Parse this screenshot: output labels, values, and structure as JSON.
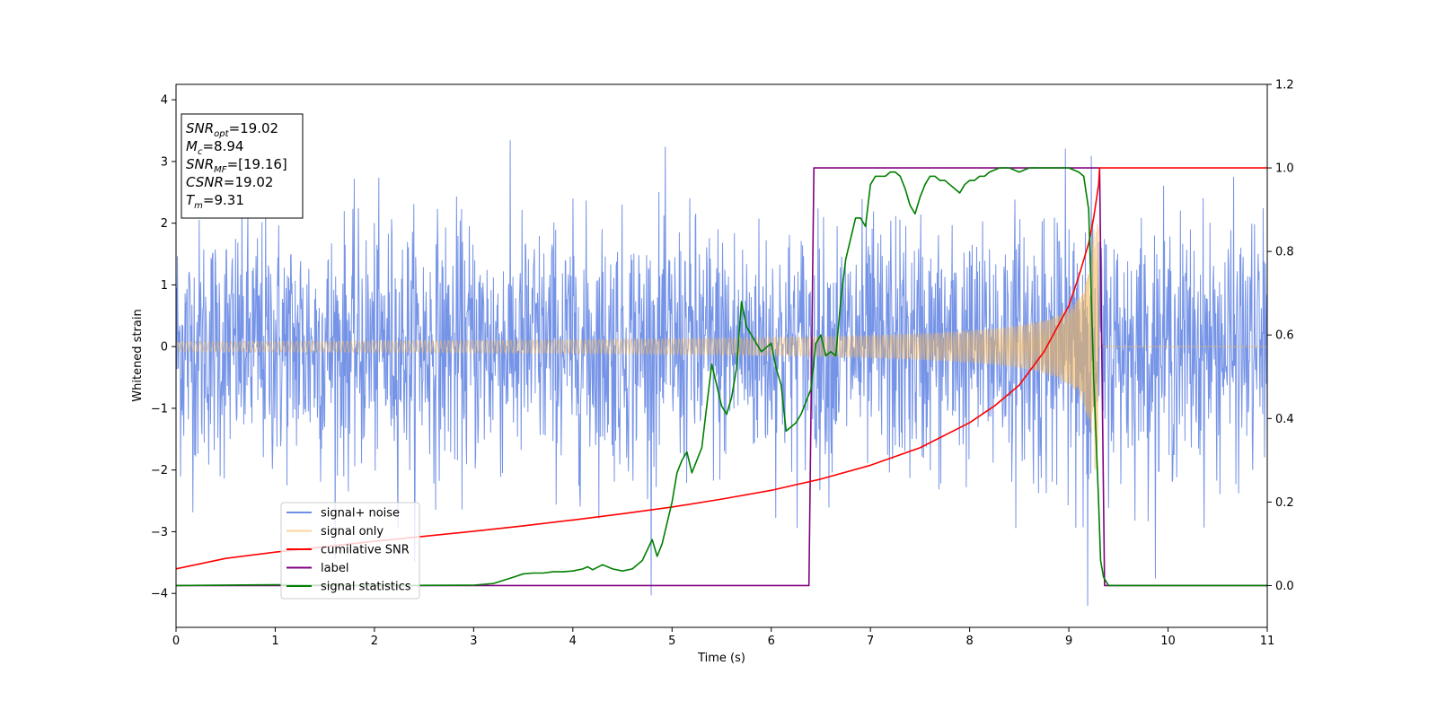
{
  "chart_data": {
    "type": "line",
    "xlabel": "Time (s)",
    "ylabel": "Whitened strain",
    "xlim": [
      0,
      11
    ],
    "ylim": [
      -4.55,
      4.25
    ],
    "y2lim": [
      -0.1,
      1.2
    ],
    "x_ticks": [
      0,
      1,
      2,
      3,
      4,
      5,
      6,
      7,
      8,
      9,
      10,
      11
    ],
    "y_ticks": [
      -4,
      -3,
      -2,
      -1,
      0,
      1,
      2,
      3,
      4
    ],
    "y2_ticks": [
      0.0,
      0.2,
      0.4,
      0.6,
      0.8,
      1.0,
      1.2
    ],
    "grid": false,
    "legend_position": "lower-left",
    "info_box": {
      "lines": [
        {
          "base": "SNR",
          "sub": "opt",
          "value": "=19.02"
        },
        {
          "base": "M",
          "sub": "c",
          "value": "=8.94"
        },
        {
          "base": "SNR",
          "sub": "MF",
          "value": "=[19.16]"
        },
        {
          "base": "CSNR",
          "sub": "",
          "value": "=19.02"
        },
        {
          "base": "T",
          "sub": "m",
          "value": "=9.31"
        }
      ]
    },
    "series": [
      {
        "name": "signal+ noise",
        "axis": "left",
        "color": "#6f8ee6",
        "kind": "noise",
        "description_values": {
          "noise_sigma": 1.0,
          "envelope_high_max": 3.85,
          "envelope_low_min": -4.2,
          "x_end": 11.0
        }
      },
      {
        "name": "signal only",
        "axis": "left",
        "color": "#f5b75a",
        "kind": "chirp",
        "description_values": {
          "merger_time": 9.3,
          "amp_start": 0.08,
          "amp_peak": 2.0,
          "x_end": 11.0
        }
      },
      {
        "name": "cumilative SNR",
        "axis": "right",
        "color": "#ff0000",
        "x": [
          0.0,
          0.5,
          1.0,
          1.5,
          2.0,
          2.5,
          3.0,
          3.5,
          4.0,
          4.5,
          5.0,
          5.5,
          6.0,
          6.5,
          7.0,
          7.5,
          8.0,
          8.25,
          8.5,
          8.75,
          9.0,
          9.1,
          9.2,
          9.25,
          9.3,
          9.31,
          10.0,
          11.0
        ],
        "values": [
          0.04,
          0.065,
          0.08,
          0.093,
          0.106,
          0.118,
          0.13,
          0.143,
          0.157,
          0.172,
          0.188,
          0.207,
          0.228,
          0.255,
          0.288,
          0.33,
          0.39,
          0.43,
          0.48,
          0.56,
          0.67,
          0.74,
          0.82,
          0.88,
          0.96,
          1.0,
          1.0,
          1.0
        ]
      },
      {
        "name": "label",
        "axis": "right",
        "color": "#800080",
        "x": [
          0.0,
          6.38,
          6.43,
          9.31,
          9.36,
          11.0
        ],
        "values": [
          0.0,
          0.0,
          1.0,
          1.0,
          0.0,
          0.0
        ]
      },
      {
        "name": "signal statistics",
        "axis": "right",
        "color": "#007f00",
        "x": [
          0.0,
          1.0,
          2.0,
          3.0,
          3.2,
          3.4,
          3.5,
          3.6,
          3.7,
          3.8,
          3.9,
          4.0,
          4.1,
          4.15,
          4.2,
          4.3,
          4.4,
          4.5,
          4.6,
          4.7,
          4.75,
          4.8,
          4.85,
          4.9,
          5.0,
          5.05,
          5.1,
          5.15,
          5.2,
          5.25,
          5.3,
          5.4,
          5.45,
          5.5,
          5.55,
          5.6,
          5.65,
          5.7,
          5.75,
          5.8,
          5.85,
          5.9,
          5.95,
          6.0,
          6.05,
          6.1,
          6.15,
          6.2,
          6.25,
          6.3,
          6.35,
          6.4,
          6.45,
          6.5,
          6.55,
          6.6,
          6.65,
          6.7,
          6.75,
          6.8,
          6.85,
          6.9,
          6.95,
          7.0,
          7.05,
          7.1,
          7.15,
          7.2,
          7.25,
          7.3,
          7.35,
          7.4,
          7.45,
          7.5,
          7.55,
          7.6,
          7.65,
          7.7,
          7.75,
          7.8,
          7.85,
          7.9,
          7.95,
          8.0,
          8.05,
          8.1,
          8.15,
          8.2,
          8.3,
          8.4,
          8.5,
          8.6,
          8.7,
          8.8,
          8.9,
          9.0,
          9.1,
          9.15,
          9.2,
          9.25,
          9.3,
          9.32,
          9.35,
          9.4,
          10.0,
          11.0
        ],
        "values": [
          0.0,
          0.002,
          0.0,
          0.001,
          0.005,
          0.02,
          0.028,
          0.03,
          0.03,
          0.033,
          0.033,
          0.035,
          0.04,
          0.045,
          0.038,
          0.05,
          0.04,
          0.035,
          0.04,
          0.06,
          0.085,
          0.11,
          0.07,
          0.1,
          0.2,
          0.27,
          0.3,
          0.32,
          0.27,
          0.3,
          0.33,
          0.53,
          0.48,
          0.43,
          0.41,
          0.45,
          0.52,
          0.68,
          0.62,
          0.6,
          0.58,
          0.56,
          0.57,
          0.58,
          0.52,
          0.48,
          0.37,
          0.38,
          0.39,
          0.41,
          0.44,
          0.47,
          0.58,
          0.6,
          0.55,
          0.56,
          0.55,
          0.68,
          0.78,
          0.83,
          0.88,
          0.88,
          0.86,
          0.96,
          0.98,
          0.98,
          0.98,
          0.99,
          0.99,
          0.98,
          0.95,
          0.91,
          0.89,
          0.93,
          0.96,
          0.98,
          0.98,
          0.97,
          0.97,
          0.96,
          0.95,
          0.94,
          0.96,
          0.97,
          0.97,
          0.98,
          0.98,
          0.99,
          1.0,
          1.0,
          0.99,
          1.0,
          1.0,
          1.0,
          1.0,
          1.0,
          0.99,
          0.98,
          0.9,
          0.5,
          0.2,
          0.06,
          0.02,
          0.0,
          0.0,
          0.0
        ]
      }
    ]
  }
}
